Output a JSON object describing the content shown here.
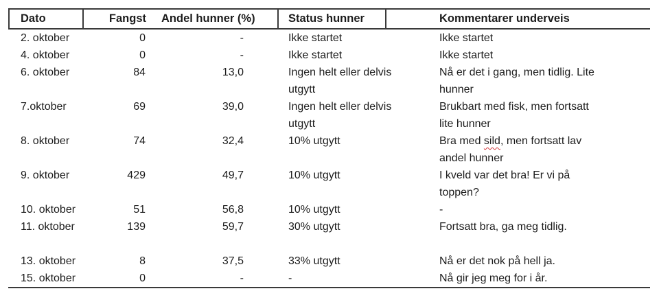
{
  "table": {
    "headers": [
      "Dato",
      "Fangst",
      "Andel hunner (%)",
      "Status hunner",
      "Kommentarer underveis"
    ],
    "rows": [
      {
        "dato": "2. oktober",
        "fangst": "0",
        "andel": "-",
        "status": "Ikke startet",
        "kommentar": "Ikke startet"
      },
      {
        "dato": "4. oktober",
        "fangst": "0",
        "andel": "-",
        "status": "Ikke startet",
        "kommentar": "Ikke startet"
      },
      {
        "dato": "6. oktober",
        "fangst": "84",
        "andel": "13,0",
        "status": "Ingen helt eller delvis\nutgytt",
        "kommentar": "Nå er det i gang, men tidlig. Lite\nhunner"
      },
      {
        "dato": "7.oktober",
        "fangst": "69",
        "andel": "39,0",
        "status": "Ingen helt eller delvis\nutgytt",
        "kommentar": "Brukbart med fisk, men fortsatt\nlite hunner"
      },
      {
        "dato": "8. oktober",
        "fangst": "74",
        "andel": "32,4",
        "status": "10% utgytt",
        "kommentar_before": "Bra med ",
        "kommentar_misspelled": "sild",
        "kommentar_after": ", men fortsatt lav\nandel hunner"
      },
      {
        "dato": "9. oktober",
        "fangst": "429",
        "andel": "49,7",
        "status": "10% utgytt",
        "kommentar": "I kveld var det bra! Er vi på\ntoppen?"
      },
      {
        "dato": "10. oktober",
        "fangst": "51",
        "andel": "56,8",
        "status": "10% utgytt",
        "kommentar": "-"
      },
      {
        "dato": "11. oktober",
        "fangst": "139",
        "andel": "59,7",
        "status": "30% utgytt",
        "kommentar": "Fortsatt bra, ga meg tidlig."
      },
      {
        "dato": "",
        "fangst": "",
        "andel": "",
        "status": "",
        "kommentar": ""
      },
      {
        "dato": "13. oktober",
        "fangst": "8",
        "andel": "37,5",
        "status": "33% utgytt",
        "kommentar": "Nå er det nok på hell ja."
      },
      {
        "dato": "15. oktober",
        "fangst": "0",
        "andel": "-",
        "status": "-",
        "kommentar": "Nå gir jeg meg for i år."
      }
    ],
    "colors": {
      "rule": "#3a3a3a",
      "text": "#1c1c1c",
      "spellcheck_underline": "#d13438"
    }
  }
}
